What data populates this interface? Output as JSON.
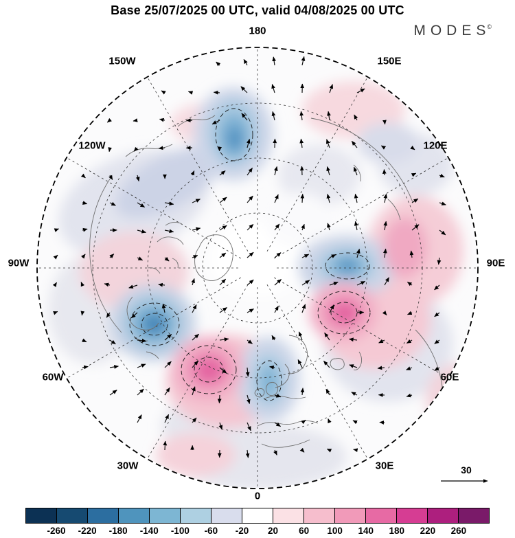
{
  "header": {
    "title": "Base 25/07/2025 00 UTC, valid 04/08/2025 00 UTC",
    "brand": "MODES",
    "brand_symbol": "©"
  },
  "map": {
    "lon_labels": [
      "180",
      "150W",
      "150E",
      "120W",
      "120E",
      "90W",
      "90E",
      "60W",
      "60E",
      "30W",
      "30E",
      "0"
    ]
  },
  "reference_vector": {
    "label": "30"
  },
  "colorbar": {
    "ticks": [
      "-260",
      "-220",
      "-180",
      "-140",
      "-100",
      "-60",
      "-20",
      "20",
      "60",
      "100",
      "140",
      "180",
      "220",
      "260"
    ],
    "colors": [
      "#0c3154",
      "#164a71",
      "#2c6ea0",
      "#4f94bd",
      "#7db6d3",
      "#aed0e2",
      "#d9dded",
      "#ffffff",
      "#fbe1e5",
      "#f6becd",
      "#f19ab9",
      "#e76aa4",
      "#d63d93",
      "#ad1f7e",
      "#7a1a69"
    ]
  }
}
